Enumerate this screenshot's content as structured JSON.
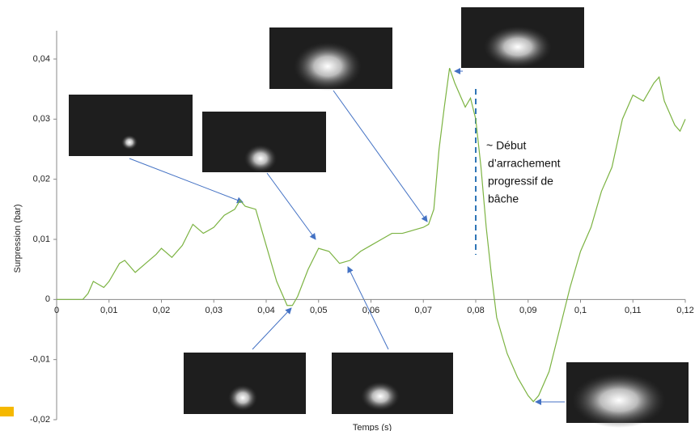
{
  "chart_data": {
    "type": "line",
    "x_label": "Temps (s)",
    "y_label": "Surpression (bar)",
    "annotation": [
      "~ Début",
      "d’arrachement",
      "progressif de",
      "bâche"
    ],
    "xlim": [
      0,
      0.12
    ],
    "ylim": [
      -0.02,
      0.04
    ],
    "xticks": [
      0,
      {
        "value": 0.01,
        "label": "0,01"
      },
      {
        "value": 0.02,
        "label": "0,02"
      },
      {
        "value": 0.03,
        "label": "0,03"
      },
      {
        "value": 0.04,
        "label": "0,04"
      },
      {
        "value": 0.05,
        "label": "0,05"
      },
      {
        "value": 0.06,
        "label": "0,06"
      },
      {
        "value": 0.07,
        "label": "0,07"
      },
      {
        "value": 0.08,
        "label": "0,08"
      },
      {
        "value": 0.09,
        "label": "0,09"
      },
      {
        "value": 0.1,
        "label": "0,1"
      },
      {
        "value": 0.11,
        "label": "0,11"
      },
      {
        "value": 0.12,
        "label": "0,12"
      }
    ],
    "yticks": [
      {
        "value": -0.02,
        "label": "-0,02"
      },
      {
        "value": -0.01,
        "label": "-0,01"
      },
      0,
      {
        "value": 0.01,
        "label": "0,01"
      },
      {
        "value": 0.02,
        "label": "0,02"
      },
      {
        "value": 0.03,
        "label": "0,03"
      },
      {
        "value": 0.04,
        "label": "0,04"
      }
    ],
    "series": [
      {
        "color": "#7cb342",
        "x": [
          0,
          0.005,
          0.006,
          0.007,
          0.008,
          0.009,
          0.01,
          0.012,
          0.013,
          0.015,
          0.017,
          0.019,
          0.02,
          0.022,
          0.024,
          0.026,
          0.028,
          0.03,
          0.032,
          0.034,
          0.035,
          0.036,
          0.038,
          0.04,
          0.042,
          0.044,
          0.045,
          0.046,
          0.048,
          0.05,
          0.052,
          0.054,
          0.056,
          0.058,
          0.06,
          0.062,
          0.064,
          0.066,
          0.068,
          0.07,
          0.071,
          0.072,
          0.073,
          0.074,
          0.075,
          0.076,
          0.077,
          0.078,
          0.079,
          0.08,
          0.081,
          0.082,
          0.083,
          0.084,
          0.086,
          0.088,
          0.09,
          0.091,
          0.092,
          0.094,
          0.096,
          0.098,
          0.1,
          0.102,
          0.104,
          0.106,
          0.108,
          0.11,
          0.112,
          0.114,
          0.115,
          0.116,
          0.118,
          0.119,
          0.12
        ],
        "values": [
          0,
          0,
          0.001,
          0.003,
          0.0025,
          0.002,
          0.003,
          0.006,
          0.0065,
          0.0045,
          0.006,
          0.0075,
          0.0085,
          0.007,
          0.009,
          0.0125,
          0.011,
          0.012,
          0.014,
          0.015,
          0.0165,
          0.0155,
          0.015,
          0.009,
          0.003,
          -0.001,
          -0.001,
          0.0005,
          0.005,
          0.0085,
          0.008,
          0.006,
          0.0065,
          0.008,
          0.009,
          0.01,
          0.011,
          0.011,
          0.0115,
          0.012,
          0.0125,
          0.015,
          0.025,
          0.032,
          0.0385,
          0.036,
          0.034,
          0.032,
          0.0335,
          0.03,
          0.022,
          0.012,
          0.004,
          -0.003,
          -0.009,
          -0.013,
          -0.016,
          -0.017,
          -0.016,
          -0.012,
          -0.005,
          0.002,
          0.008,
          0.012,
          0.018,
          0.022,
          0.03,
          0.034,
          0.033,
          0.036,
          0.037,
          0.033,
          0.029,
          0.028,
          0.03
        ]
      }
    ]
  }
}
